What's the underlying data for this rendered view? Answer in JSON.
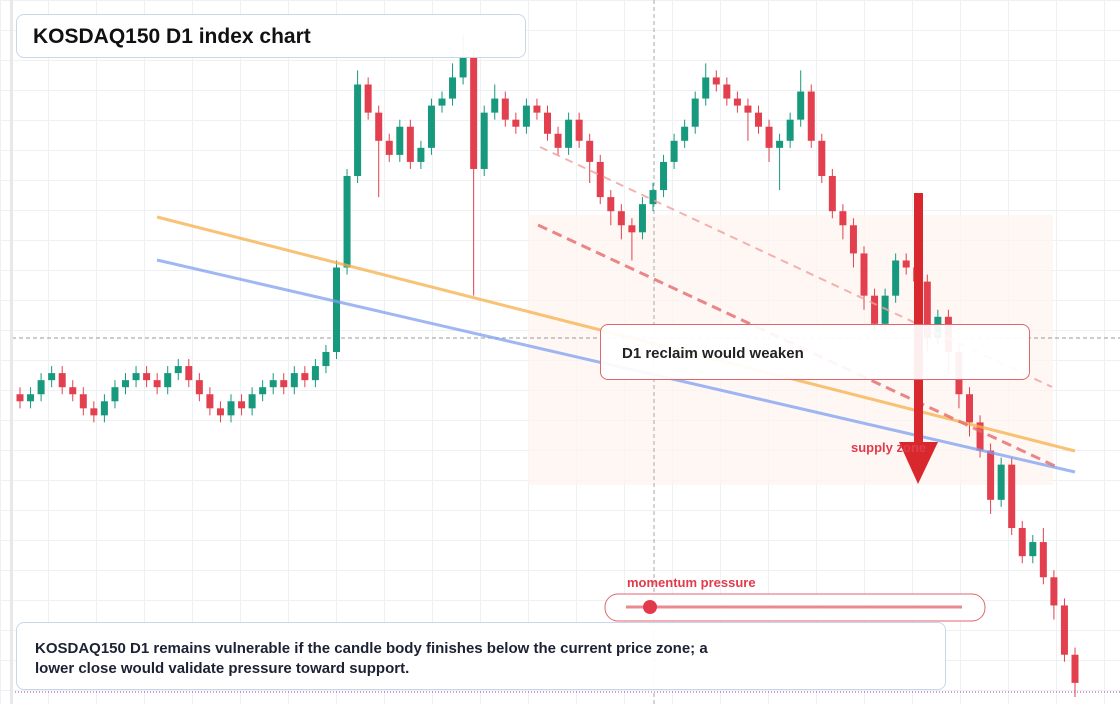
{
  "chart_data": {
    "type": "candlestick",
    "title": "KOSDAQ150 D1 index chart",
    "open": [
      44,
      43,
      44,
      46,
      47,
      45,
      44,
      42,
      41,
      43,
      45,
      46,
      47,
      46,
      45,
      47,
      48,
      46,
      44,
      42,
      41,
      43,
      42,
      44,
      45,
      46,
      45,
      47,
      46,
      48,
      50,
      62,
      75,
      88,
      84,
      80,
      78,
      82,
      77,
      79,
      85,
      86,
      89,
      92,
      76,
      84,
      86,
      83,
      82,
      85,
      84,
      81,
      79,
      83,
      80,
      77,
      72,
      70,
      68,
      67,
      71,
      73,
      77,
      80,
      82,
      86,
      89,
      88,
      86,
      85,
      84,
      82,
      79,
      80,
      83,
      87,
      80,
      75,
      70,
      68,
      64,
      58,
      54,
      58,
      63,
      62,
      60,
      52,
      55,
      50,
      44,
      40,
      36,
      29,
      34,
      25,
      21,
      23,
      18,
      14,
      7
    ],
    "high": [
      45,
      45,
      47,
      48,
      48,
      46,
      45,
      43,
      44,
      46,
      47,
      48,
      48,
      47,
      48,
      49,
      49,
      47,
      45,
      43,
      44,
      44,
      45,
      46,
      47,
      47,
      48,
      48,
      49,
      51,
      63,
      76,
      90,
      89,
      85,
      81,
      83,
      83,
      80,
      86,
      87,
      91,
      95,
      93,
      85,
      88,
      87,
      84,
      86,
      86,
      85,
      82,
      84,
      84,
      81,
      78,
      73,
      71,
      69,
      72,
      74,
      78,
      81,
      83,
      87,
      91,
      90,
      89,
      87,
      86,
      85,
      83,
      81,
      84,
      90,
      88,
      81,
      76,
      71,
      69,
      65,
      59,
      59,
      64,
      64,
      63,
      61,
      56,
      56,
      51,
      45,
      41,
      37,
      35,
      35,
      26,
      24,
      25,
      19,
      15,
      8
    ],
    "low": [
      42,
      42,
      43,
      45,
      44,
      43,
      41,
      40,
      40,
      42,
      44,
      45,
      45,
      44,
      44,
      46,
      45,
      43,
      41,
      40,
      40,
      41,
      41,
      43,
      44,
      44,
      44,
      45,
      45,
      47,
      49,
      61,
      74,
      83,
      72,
      77,
      77,
      76,
      76,
      78,
      84,
      85,
      88,
      58,
      75,
      83,
      82,
      81,
      81,
      83,
      80,
      78,
      78,
      79,
      74,
      71,
      68,
      66,
      63,
      66,
      70,
      72,
      76,
      79,
      81,
      85,
      87,
      85,
      84,
      80,
      81,
      77,
      73,
      79,
      82,
      79,
      74,
      69,
      66,
      62,
      56,
      53,
      53,
      57,
      61,
      58,
      50,
      51,
      47,
      42,
      38,
      35,
      27,
      28,
      24,
      20,
      20,
      17,
      12,
      6,
      1
    ],
    "close": [
      43,
      44,
      46,
      47,
      45,
      44,
      42,
      41,
      43,
      45,
      46,
      47,
      46,
      45,
      47,
      48,
      46,
      44,
      42,
      41,
      43,
      42,
      44,
      45,
      46,
      45,
      47,
      46,
      48,
      50,
      62,
      75,
      88,
      84,
      80,
      78,
      82,
      77,
      79,
      85,
      86,
      89,
      92,
      76,
      84,
      86,
      83,
      82,
      85,
      84,
      81,
      79,
      83,
      80,
      77,
      72,
      70,
      68,
      67,
      71,
      73,
      77,
      80,
      82,
      86,
      89,
      88,
      86,
      85,
      84,
      82,
      79,
      80,
      83,
      87,
      80,
      75,
      70,
      68,
      64,
      58,
      54,
      58,
      63,
      62,
      60,
      52,
      55,
      50,
      44,
      40,
      36,
      29,
      34,
      25,
      21,
      23,
      18,
      14,
      7,
      3
    ],
    "ylim": [
      0,
      100
    ],
    "up_color": "#16997c",
    "down_color": "#e2404f",
    "annotations": {
      "reclaim": "D1 reclaim would weaken",
      "supply": "supply zone",
      "momentum": "momentum pressure",
      "note": "KOSDAQ150 D1 remains vulnerable if the candle body finishes below the current price zone; a lower close would validate pressure toward support."
    }
  }
}
